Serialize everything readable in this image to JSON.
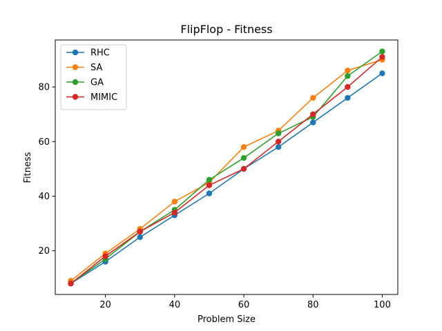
{
  "chart_data": {
    "type": "line",
    "title": "FlipFlop - Fitness",
    "xlabel": "Problem Size",
    "ylabel": "Fitness",
    "x": [
      10,
      20,
      30,
      40,
      50,
      60,
      70,
      80,
      90,
      100
    ],
    "xlim": [
      5.5,
      104.5
    ],
    "ylim": [
      4.0,
      97.2
    ],
    "xticks": [
      20,
      40,
      60,
      80,
      100
    ],
    "yticks": [
      20,
      40,
      60,
      80
    ],
    "grid": false,
    "legend_position": "upper-left",
    "series": [
      {
        "name": "RHC",
        "color": "#1f77b4",
        "values": [
          8,
          16,
          25,
          33,
          41,
          50,
          58,
          67,
          76,
          85
        ]
      },
      {
        "name": "SA",
        "color": "#ff7f0e",
        "values": [
          9,
          19,
          28,
          38,
          45,
          58,
          64,
          76,
          86,
          90
        ]
      },
      {
        "name": "GA",
        "color": "#2ca02c",
        "values": [
          8,
          17,
          27,
          35,
          46,
          54,
          63,
          69,
          84,
          93
        ]
      },
      {
        "name": "MIMIC",
        "color": "#d62728",
        "values": [
          8,
          18,
          27,
          34,
          44,
          50,
          60,
          70,
          80,
          91
        ]
      }
    ]
  }
}
